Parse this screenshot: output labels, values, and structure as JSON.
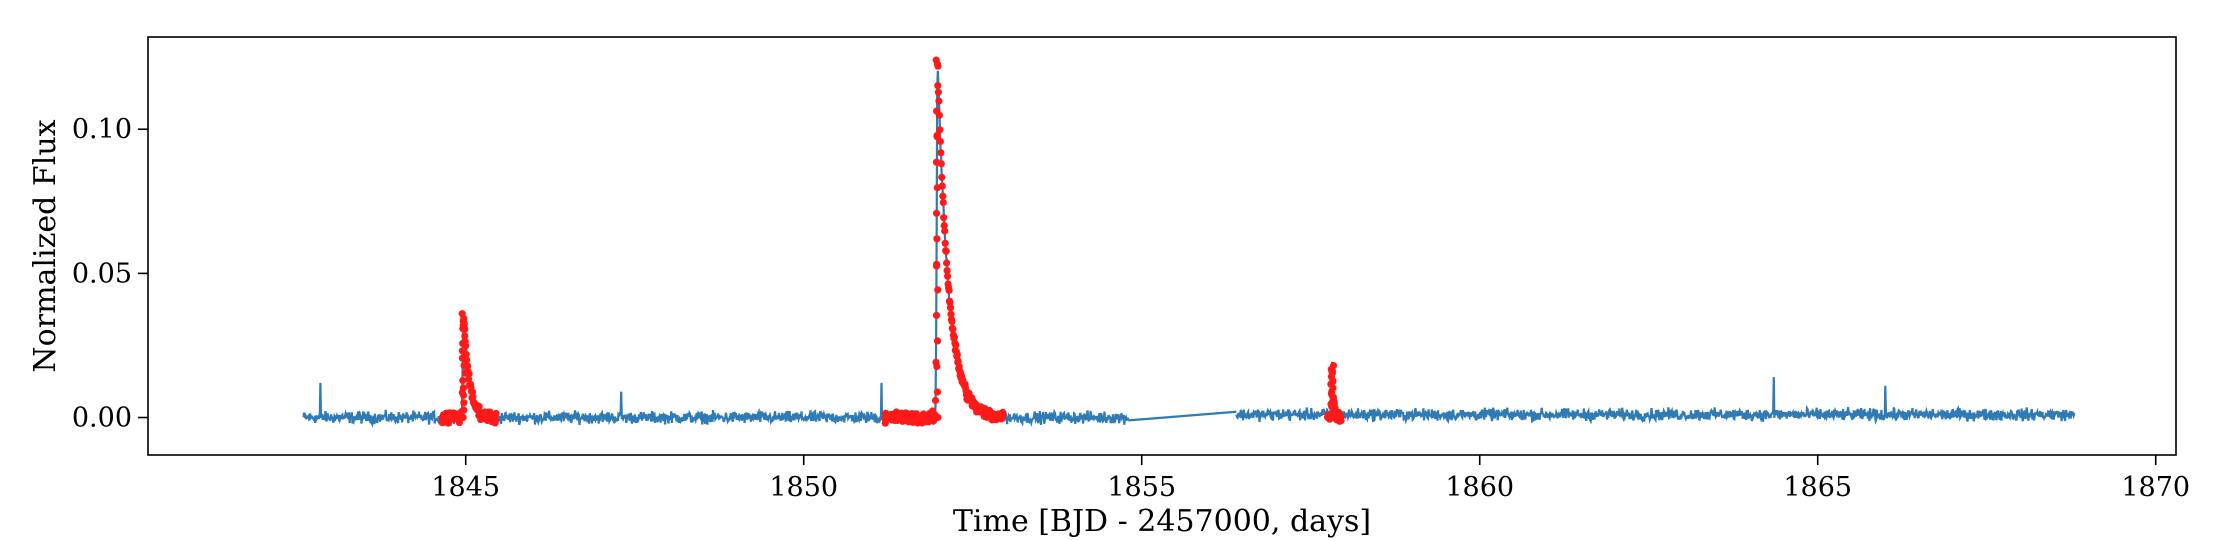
{
  "chart_data": {
    "type": "line",
    "title": "",
    "xlabel": "Time [BJD - 2457000, days]",
    "ylabel": "Normalized Flux",
    "xlim": [
      1840.3,
      1870.3
    ],
    "ylim": [
      -0.013,
      0.132
    ],
    "x_ticks": [
      1845,
      1850,
      1855,
      1860,
      1865,
      1870
    ],
    "x_tick_labels": [
      "1845",
      "1850",
      "1855",
      "1860",
      "1865",
      "1870"
    ],
    "y_ticks": [
      0.0,
      0.05,
      0.1
    ],
    "y_tick_labels": [
      "0.00",
      "0.05",
      "0.10"
    ],
    "grid": false,
    "legend": "none",
    "colors": {
      "lightcurve": "#2e7bb6",
      "flare": "#ff1a1a"
    },
    "series": [
      {
        "role": "light-curve",
        "segments": [
          {
            "x_start": 1842.6,
            "x_end": 1854.8,
            "baseline": 0.0,
            "noise_amp": 0.003
          },
          {
            "x_start": 1856.4,
            "x_end": 1868.8,
            "baseline": 0.001,
            "noise_amp": 0.003
          }
        ],
        "gap_line": {
          "x": [
            1854.8,
            1856.4
          ],
          "y": [
            -0.001,
            0.002
          ]
        },
        "spikes": [
          {
            "x": 1842.85,
            "y": 0.012
          },
          {
            "x": 1847.3,
            "y": 0.009
          },
          {
            "x": 1851.15,
            "y": 0.012
          },
          {
            "x": 1864.35,
            "y": 0.014
          },
          {
            "x": 1866.0,
            "y": 0.011
          }
        ]
      },
      {
        "role": "flares",
        "events": [
          {
            "x_start": 1844.65,
            "x_end": 1845.45,
            "peak_x": 1844.97,
            "peak_y": 0.036
          },
          {
            "x_start": 1851.2,
            "x_end": 1852.95,
            "peak_x": 1851.98,
            "peak_y": 0.124
          },
          {
            "x_start": 1857.75,
            "x_end": 1857.95,
            "peak_x": 1857.82,
            "peak_y": 0.018
          }
        ]
      }
    ]
  }
}
